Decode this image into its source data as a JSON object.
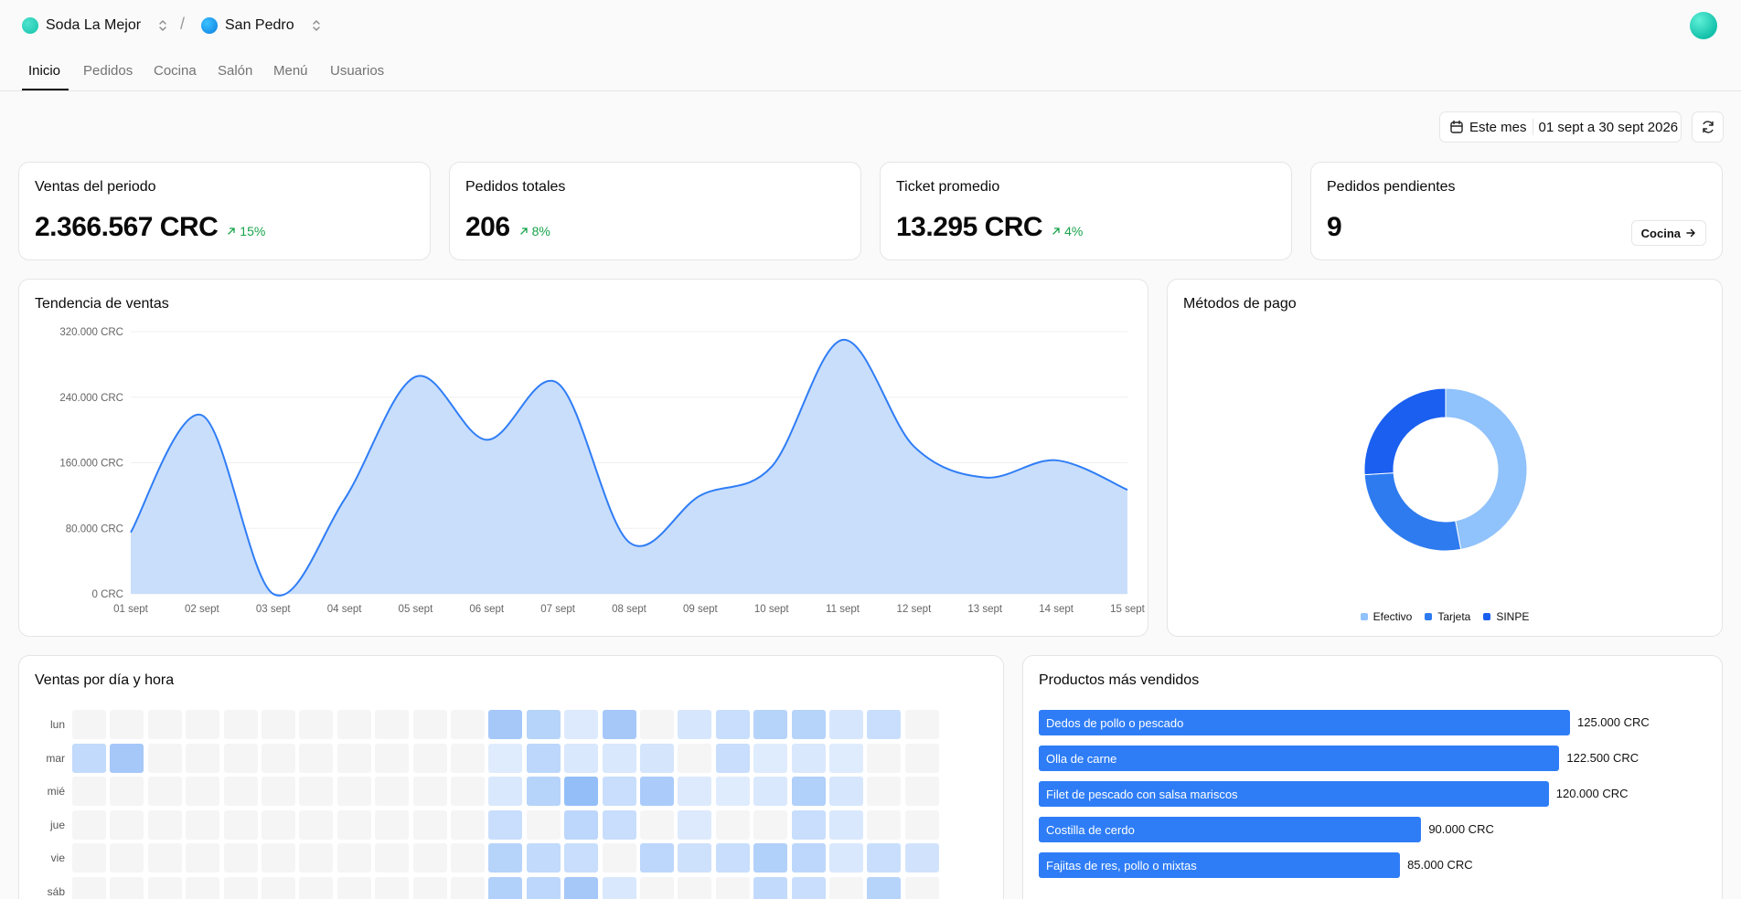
{
  "header": {
    "business": "Soda La Mejor",
    "branch": "San Pedro",
    "separator": "/"
  },
  "nav": {
    "tabs": [
      {
        "label": "Inicio",
        "active": true
      },
      {
        "label": "Pedidos",
        "active": false
      },
      {
        "label": "Cocina",
        "active": false
      },
      {
        "label": "Salón",
        "active": false
      },
      {
        "label": "Menú",
        "active": false
      },
      {
        "label": "Usuarios",
        "active": false
      }
    ]
  },
  "filters": {
    "preset": "Este mes",
    "range": "01 sept a 30 sept 2026"
  },
  "kpis": [
    {
      "title": "Ventas del periodo",
      "value": "2.366.567 CRC",
      "delta": "15%"
    },
    {
      "title": "Pedidos totales",
      "value": "206",
      "delta": "8%"
    },
    {
      "title": "Ticket promedio",
      "value": "13.295 CRC",
      "delta": "4%"
    },
    {
      "title": "Pedidos pendientes",
      "value": "9",
      "action": "Cocina"
    }
  ],
  "colors": {
    "accent": "#2f7df6",
    "positive": "#16a34a",
    "area_fill": "#c9defb",
    "line": "#2f7df6"
  },
  "sales_trend": {
    "title": "Tendencia de ventas"
  },
  "payments": {
    "title": "Métodos de pago"
  },
  "heatmap": {
    "title": "Ventas por día y hora",
    "days": [
      "lun",
      "mar",
      "mié",
      "jue",
      "vie",
      "sáb"
    ]
  },
  "top_products": {
    "title": "Productos más vendidos"
  },
  "chart_data": [
    {
      "type": "area",
      "title": "Tendencia de ventas",
      "x": [
        "01 sept",
        "02 sept",
        "03 sept",
        "04 sept",
        "05 sept",
        "06 sept",
        "07 sept",
        "08 sept",
        "09 sept",
        "10 sept",
        "11 sept",
        "12 sept",
        "13 sept",
        "14 sept",
        "15 sept"
      ],
      "values": [
        75000,
        218000,
        0,
        115000,
        265000,
        188000,
        257000,
        63000,
        120000,
        155000,
        310000,
        180000,
        142000,
        163000,
        127000
      ],
      "yticks": [
        "0 CRC",
        "80.000 CRC",
        "160.000 CRC",
        "240.000 CRC",
        "320.000 CRC"
      ],
      "ylim": [
        0,
        320000
      ],
      "grid": true
    },
    {
      "type": "pie",
      "title": "Métodos de pago",
      "labels": [
        "Efectivo",
        "Tarjeta",
        "SINPE"
      ],
      "values": [
        47,
        27,
        26
      ],
      "colors": [
        "#90c2fb",
        "#2e7bf0",
        "#1a5ff0"
      ],
      "legend": "bottom"
    },
    {
      "type": "heatmap",
      "title": "Ventas por día y hora",
      "rows": [
        "lun",
        "mar",
        "mié",
        "jue",
        "vie",
        "sáb"
      ],
      "levels": [
        [
          0,
          0,
          0,
          0,
          0,
          0,
          0,
          0,
          0,
          0,
          0,
          0.6,
          0.45,
          0.12,
          0.6,
          0,
          0.18,
          0.3,
          0.45,
          0.45,
          0.18,
          0.3,
          0
        ],
        [
          0.35,
          0.6,
          0,
          0,
          0,
          0,
          0,
          0,
          0,
          0,
          0,
          0.1,
          0.4,
          0.15,
          0.15,
          0.2,
          0,
          0.3,
          0.1,
          0.15,
          0.1,
          0,
          0
        ],
        [
          0,
          0,
          0,
          0,
          0,
          0,
          0,
          0,
          0,
          0,
          0,
          0.15,
          0.45,
          0.75,
          0.3,
          0.55,
          0.12,
          0.1,
          0.15,
          0.5,
          0.18,
          0,
          0
        ],
        [
          0,
          0,
          0,
          0,
          0,
          0,
          0,
          0,
          0,
          0,
          0,
          0.3,
          0,
          0.4,
          0.3,
          0,
          0.12,
          0,
          0,
          0.3,
          0.15,
          0,
          0
        ],
        [
          0,
          0,
          0,
          0,
          0,
          0,
          0,
          0,
          0,
          0,
          0,
          0.45,
          0.35,
          0.3,
          0,
          0.4,
          0.25,
          0.3,
          0.5,
          0.4,
          0.15,
          0.3,
          0.22
        ],
        [
          0,
          0,
          0,
          0,
          0,
          0,
          0,
          0,
          0,
          0,
          0,
          0.5,
          0.4,
          0.6,
          0.15,
          0,
          0,
          0,
          0.35,
          0.3,
          0,
          0.45,
          0
        ]
      ]
    },
    {
      "type": "bar",
      "title": "Productos más vendidos",
      "categories": [
        "Dedos de pollo o pescado",
        "Olla de carne",
        "Filet de pescado con salsa mariscos",
        "Costilla de cerdo",
        "Fajitas de res, pollo o mixtas"
      ],
      "values": [
        125000,
        122500,
        120000,
        90000,
        85000
      ],
      "value_labels": [
        "125.000 CRC",
        "122.500 CRC",
        "120.000 CRC",
        "90.000 CRC",
        "85.000 CRC"
      ]
    }
  ]
}
